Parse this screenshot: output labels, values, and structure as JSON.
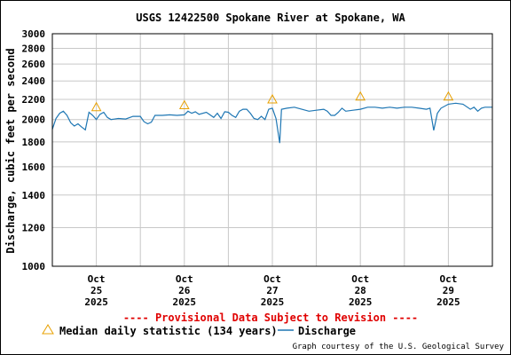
{
  "chart_data": {
    "type": "line",
    "title": "USGS 12422500 Spokane River at Spokane, WA",
    "ylabel": "Discharge, cubic feet per second",
    "xlabel": "",
    "y_scale": "log",
    "ylim": [
      1000,
      3000
    ],
    "y_ticks": [
      "3000",
      "2800",
      "2600",
      "2400",
      "2200",
      "2000",
      "1800",
      "1600",
      "1400",
      "1200",
      "1000"
    ],
    "x_range": [
      "2025-10-24 12:00",
      "2025-10-29 12:00"
    ],
    "x_ticks": [
      {
        "date": "2025-10-25",
        "lines": [
          "Oct",
          "25",
          "2025"
        ]
      },
      {
        "date": "2025-10-26",
        "lines": [
          "Oct",
          "26",
          "2025"
        ]
      },
      {
        "date": "2025-10-27",
        "lines": [
          "Oct",
          "27",
          "2025"
        ]
      },
      {
        "date": "2025-10-28",
        "lines": [
          "Oct",
          "28",
          "2025"
        ]
      },
      {
        "date": "2025-10-29",
        "lines": [
          "Oct",
          "29",
          "2025"
        ]
      }
    ],
    "grid": true,
    "series": [
      {
        "name": "Discharge",
        "color": "#1f77b4",
        "points": [
          [
            "2025-10-24 12:00",
            1910
          ],
          [
            "2025-10-24 13:00",
            2010
          ],
          [
            "2025-10-24 14:00",
            2060
          ],
          [
            "2025-10-24 15:00",
            2080
          ],
          [
            "2025-10-24 16:00",
            2040
          ],
          [
            "2025-10-24 17:00",
            1970
          ],
          [
            "2025-10-24 18:00",
            1940
          ],
          [
            "2025-10-24 19:00",
            1960
          ],
          [
            "2025-10-24 20:00",
            1930
          ],
          [
            "2025-10-24 21:00",
            1905
          ],
          [
            "2025-10-24 22:00",
            2070
          ],
          [
            "2025-10-24 23:00",
            2040
          ],
          [
            "2025-10-25 00:00",
            2000
          ],
          [
            "2025-10-25 01:00",
            2050
          ],
          [
            "2025-10-25 02:00",
            2070
          ],
          [
            "2025-10-25 03:00",
            2020
          ],
          [
            "2025-10-25 04:00",
            2000
          ],
          [
            "2025-10-25 06:00",
            2010
          ],
          [
            "2025-10-25 08:00",
            2005
          ],
          [
            "2025-10-25 10:00",
            2030
          ],
          [
            "2025-10-25 12:00",
            2030
          ],
          [
            "2025-10-25 13:00",
            1980
          ],
          [
            "2025-10-25 14:00",
            1960
          ],
          [
            "2025-10-25 15:00",
            1975
          ],
          [
            "2025-10-25 16:00",
            2040
          ],
          [
            "2025-10-25 18:00",
            2040
          ],
          [
            "2025-10-25 20:00",
            2045
          ],
          [
            "2025-10-25 22:00",
            2040
          ],
          [
            "2025-10-26 00:00",
            2045
          ],
          [
            "2025-10-26 01:00",
            2080
          ],
          [
            "2025-10-26 02:00",
            2060
          ],
          [
            "2025-10-26 03:00",
            2075
          ],
          [
            "2025-10-26 04:00",
            2050
          ],
          [
            "2025-10-26 06:00",
            2070
          ],
          [
            "2025-10-26 08:00",
            2020
          ],
          [
            "2025-10-26 09:00",
            2060
          ],
          [
            "2025-10-26 10:00",
            2010
          ],
          [
            "2025-10-26 11:00",
            2075
          ],
          [
            "2025-10-26 12:00",
            2070
          ],
          [
            "2025-10-26 13:00",
            2040
          ],
          [
            "2025-10-26 14:00",
            2020
          ],
          [
            "2025-10-26 15:00",
            2080
          ],
          [
            "2025-10-26 16:00",
            2100
          ],
          [
            "2025-10-26 17:00",
            2100
          ],
          [
            "2025-10-26 18:00",
            2060
          ],
          [
            "2025-10-26 19:00",
            2010
          ],
          [
            "2025-10-26 20:00",
            2000
          ],
          [
            "2025-10-26 21:00",
            2030
          ],
          [
            "2025-10-26 22:00",
            2000
          ],
          [
            "2025-10-26 23:00",
            2100
          ],
          [
            "2025-10-27 00:00",
            2110
          ],
          [
            "2025-10-27 01:00",
            2010
          ],
          [
            "2025-10-27 02:00",
            1790
          ],
          [
            "2025-10-27 02:30",
            2100
          ],
          [
            "2025-10-27 04:00",
            2110
          ],
          [
            "2025-10-27 06:00",
            2120
          ],
          [
            "2025-10-27 08:00",
            2100
          ],
          [
            "2025-10-27 10:00",
            2080
          ],
          [
            "2025-10-27 12:00",
            2090
          ],
          [
            "2025-10-27 14:00",
            2100
          ],
          [
            "2025-10-27 15:00",
            2080
          ],
          [
            "2025-10-27 16:00",
            2040
          ],
          [
            "2025-10-27 17:00",
            2040
          ],
          [
            "2025-10-27 18:00",
            2070
          ],
          [
            "2025-10-27 19:00",
            2110
          ],
          [
            "2025-10-27 20:00",
            2080
          ],
          [
            "2025-10-27 22:00",
            2090
          ],
          [
            "2025-10-28 00:00",
            2100
          ],
          [
            "2025-10-28 02:00",
            2120
          ],
          [
            "2025-10-28 04:00",
            2120
          ],
          [
            "2025-10-28 06:00",
            2110
          ],
          [
            "2025-10-28 08:00",
            2120
          ],
          [
            "2025-10-28 10:00",
            2110
          ],
          [
            "2025-10-28 12:00",
            2120
          ],
          [
            "2025-10-28 14:00",
            2120
          ],
          [
            "2025-10-28 16:00",
            2110
          ],
          [
            "2025-10-28 18:00",
            2100
          ],
          [
            "2025-10-28 19:00",
            2110
          ],
          [
            "2025-10-28 20:00",
            1900
          ],
          [
            "2025-10-28 21:00",
            2060
          ],
          [
            "2025-10-28 22:00",
            2110
          ],
          [
            "2025-10-29 00:00",
            2150
          ],
          [
            "2025-10-29 02:00",
            2160
          ],
          [
            "2025-10-29 04:00",
            2150
          ],
          [
            "2025-10-29 06:00",
            2100
          ],
          [
            "2025-10-29 07:00",
            2120
          ],
          [
            "2025-10-29 08:00",
            2080
          ],
          [
            "2025-10-29 09:00",
            2110
          ],
          [
            "2025-10-29 10:00",
            2120
          ],
          [
            "2025-10-29 12:00",
            2120
          ]
        ]
      },
      {
        "name": "Median daily statistic (134 years)",
        "color": "#e8a000",
        "marker": "triangle",
        "points": [
          [
            "2025-10-25 00:00",
            2120
          ],
          [
            "2025-10-26 00:00",
            2140
          ],
          [
            "2025-10-27 00:00",
            2200
          ],
          [
            "2025-10-28 00:00",
            2230
          ],
          [
            "2025-10-29 00:00",
            2230
          ]
        ]
      }
    ]
  },
  "provisional_note": "---- Provisional Data Subject to Revision ----",
  "legend": {
    "median_label": "Median daily statistic (134 years)",
    "discharge_label": "Discharge"
  },
  "credit": "Graph courtesy of the U.S. Geological Survey"
}
